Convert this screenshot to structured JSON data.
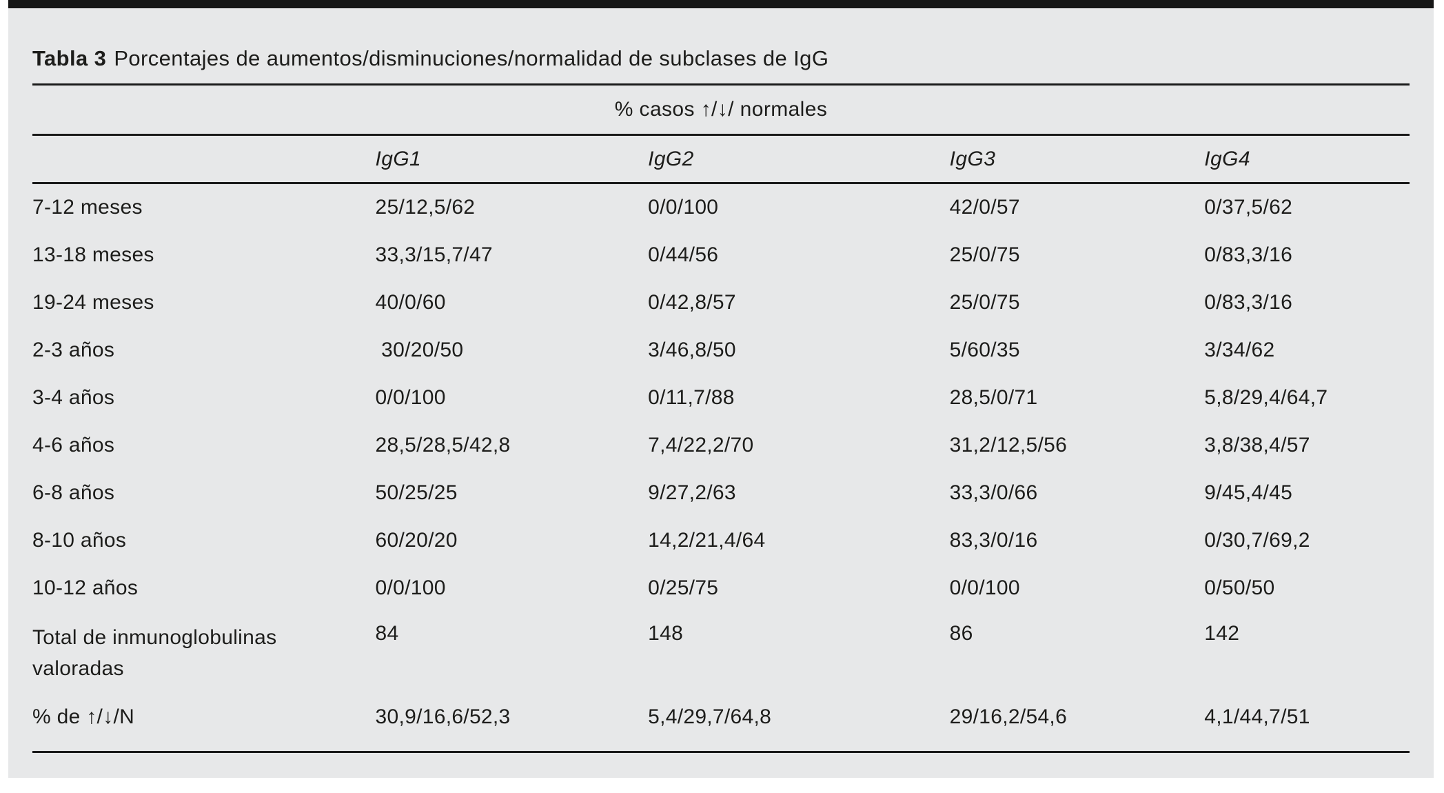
{
  "title": {
    "bold": "Tabla 3",
    "rest": "Porcentajes de aumentos/disminuciones/normalidad de subclases de IgG"
  },
  "table": {
    "group_header": "% casos ↑/↓/ normales",
    "columns": [
      "IgG1",
      "IgG2",
      "IgG3",
      "IgG4"
    ],
    "rows": [
      {
        "label": "7-12 meses",
        "values": [
          "25/12,5/62",
          "0/0/100",
          "42/0/57",
          "0/37,5/62"
        ]
      },
      {
        "label": "13-18 meses",
        "values": [
          "33,3/15,7/47",
          "0/44/56",
          "25/0/75",
          "0/83,3/16"
        ]
      },
      {
        "label": "19-24 meses",
        "values": [
          "40/0/60",
          "0/42,8/57",
          "25/0/75",
          "0/83,3/16"
        ]
      },
      {
        "label": "2-3 años",
        "values": [
          " 30/20/50",
          "3/46,8/50",
          "5/60/35",
          "3/34/62"
        ]
      },
      {
        "label": "3-4 años",
        "values": [
          "0/0/100",
          "0/11,7/88",
          "28,5/0/71",
          "5,8/29,4/64,7"
        ]
      },
      {
        "label": "4-6 años",
        "values": [
          "28,5/28,5/42,8",
          "7,4/22,2/70",
          "31,2/12,5/56",
          "3,8/38,4/57"
        ]
      },
      {
        "label": "6-8 años",
        "values": [
          "50/25/25",
          "9/27,2/63",
          "33,3/0/66",
          "9/45,4/45"
        ]
      },
      {
        "label": "8-10 años",
        "values": [
          "60/20/20",
          "14,2/21,4/64",
          "83,3/0/16",
          "0/30,7/69,2"
        ]
      },
      {
        "label": "10-12 años",
        "values": [
          "0/0/100",
          "0/25/75",
          "0/0/100",
          "0/50/50"
        ]
      },
      {
        "label": "Total de inmunoglobulinas valoradas",
        "values": [
          "84",
          "148",
          "86",
          "142"
        ]
      },
      {
        "label": "% de ↑/↓/N",
        "values": [
          "30,9/16,6/52,3",
          "5,4/29,7/64,8",
          "29/16,2/54,6",
          "4,1/44,7/51"
        ]
      }
    ]
  },
  "colors": {
    "panel_background": "#e7e8e9",
    "top_bar": "#161616",
    "rule": "#1a1a1a",
    "text": "#1d1d1b"
  }
}
